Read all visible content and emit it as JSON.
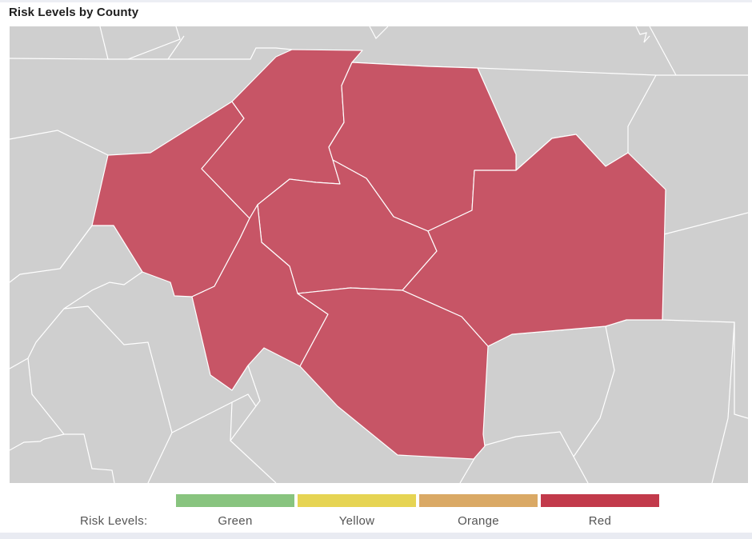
{
  "title": "Risk Levels by County",
  "colors": {
    "background_county": "#cfcfcf",
    "red_county": "#c75566",
    "county_border": "#ffffff"
  },
  "legend": {
    "label": "Risk Levels:",
    "items": [
      {
        "label": "Green",
        "color": "#88c47f"
      },
      {
        "label": "Yellow",
        "color": "#e6d453"
      },
      {
        "label": "Orange",
        "color": "#daa965"
      },
      {
        "label": "Red",
        "color": "#c23a4b"
      }
    ]
  }
}
